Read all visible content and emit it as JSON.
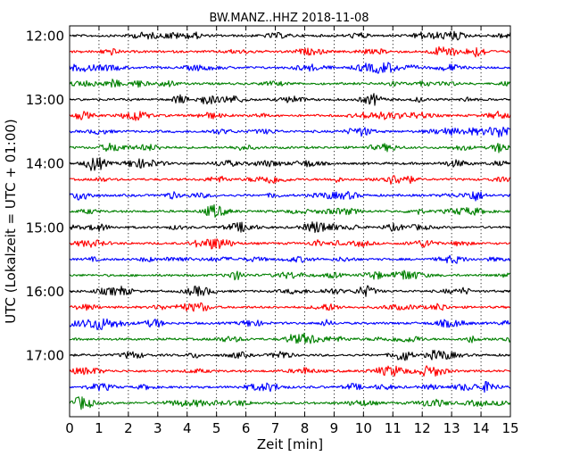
{
  "chart_data": {
    "type": "line",
    "title": "BW.MANZ..HHZ 2018-11-08",
    "xlabel": "Zeit  [min]",
    "ylabel": "UTC (Lokalzeit = UTC + 01:00)",
    "xlim": [
      0,
      15
    ],
    "x_ticks": [
      "0",
      "1",
      "2",
      "3",
      "4",
      "5",
      "6",
      "7",
      "8",
      "9",
      "10",
      "11",
      "12",
      "13",
      "14",
      "15"
    ],
    "y_ticks": [
      "12:00",
      "13:00",
      "14:00",
      "15:00",
      "16:00",
      "17:00"
    ],
    "trace_colors": [
      "#000000",
      "#ff0000",
      "#0000ff",
      "#008000"
    ],
    "trace_start_times": [
      "12:00",
      "12:15",
      "12:30",
      "12:45",
      "13:00",
      "13:15",
      "13:30",
      "13:45",
      "14:00",
      "14:15",
      "14:30",
      "14:45",
      "15:00",
      "15:15",
      "15:30",
      "15:45",
      "16:00",
      "16:15",
      "16:30",
      "16:45",
      "17:00",
      "17:15",
      "17:30",
      "17:45"
    ],
    "x_grid": "dotted",
    "legend": "none"
  }
}
